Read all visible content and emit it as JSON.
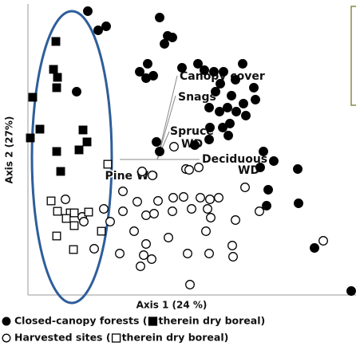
{
  "chart_data": {
    "type": "scatter",
    "x_label": "Axis 1 (24 %)",
    "y_label": "Axis 2 (27%)",
    "xlim": [
      0,
      411
    ],
    "ylim": [
      0,
      365
    ],
    "series": [
      {
        "name": "Closed-canopy forests (",
        "marker": "filled-circle",
        "color": "#000000",
        "x": [
          75,
          88,
          98,
          165,
          175,
          171,
          181,
          150,
          140,
          148,
          157,
          193,
          213,
          221,
          233,
          245,
          269,
          241,
          260,
          235,
          255,
          283,
          285,
          227,
          240,
          250,
          261,
          270,
          273,
          228,
          244,
          253,
          251,
          227,
          209,
          161,
          165,
          295,
          291,
          308,
          338,
          301,
          299,
          339,
          61,
          359,
          405
        ],
        "y": [
          356,
          332,
          337,
          348,
          325,
          315,
          323,
          290,
          280,
          272,
          275,
          285,
          290,
          282,
          280,
          280,
          290,
          265,
          270,
          255,
          250,
          260,
          245,
          235,
          230,
          235,
          230,
          240,
          225,
          210,
          210,
          215,
          200,
          195,
          188,
          192,
          180,
          180,
          160,
          168,
          158,
          132,
          112,
          115,
          255,
          59,
          5
        ]
      },
      {
        "name": "therein dry boreal)",
        "marker": "filled-square",
        "color": "#000000",
        "x": [
          35,
          32,
          37,
          36,
          6,
          15,
          3,
          69,
          74,
          64,
          36,
          41
        ],
        "y": [
          318,
          283,
          273,
          260,
          248,
          208,
          197,
          207,
          192,
          182,
          180,
          155
        ]
      },
      {
        "name": "Harvested sites (",
        "marker": "open-circle",
        "color": "#000000",
        "x": [
          183,
          198,
          202,
          214,
          143,
          156,
          119,
          137,
          148,
          163,
          182,
          195,
          205,
          216,
          228,
          239,
          225,
          229,
          260,
          223,
          181,
          158,
          119,
          103,
          133,
          176,
          148,
          145,
          141,
          155,
          115,
          200,
          227,
          256,
          257,
          272,
          290,
          370,
          203,
          47,
          68,
          70,
          95,
          83
        ],
        "y": [
          186,
          158,
          157,
          160,
          155,
          150,
          130,
          117,
          100,
          118,
          122,
          123,
          108,
          122,
          120,
          122,
          108,
          97,
          94,
          80,
          105,
          102,
          105,
          92,
          80,
          72,
          64,
          50,
          36,
          45,
          52,
          52,
          52,
          62,
          48,
          135,
          105,
          68,
          13,
          120,
          98,
          92,
          108,
          58
        ]
      },
      {
        "name": "therein dry boreal)",
        "marker": "open-square",
        "color": "#000000",
        "x": [
          29,
          37,
          53,
          58,
          76,
          48,
          58,
          92,
          36,
          57,
          100
        ],
        "y": [
          118,
          105,
          103,
          103,
          104,
          96,
          87,
          80,
          74,
          57,
          164
        ]
      }
    ],
    "vectors": {
      "origin": [
        162,
        170
      ],
      "items": [
        {
          "lines": [
            "Canopy cover"
          ],
          "x": 187,
          "y": 275
        },
        {
          "lines": [
            "Snags"
          ],
          "x": 185,
          "y": 250
        },
        {
          "lines": [
            "Spruce",
            "WD"
          ],
          "x": 177,
          "y": 205
        },
        {
          "lines": [
            "Pine WD"
          ],
          "x": 115,
          "y": 170
        },
        {
          "lines": [
            "Deciduous",
            "WD"
          ],
          "x": 215,
          "y": 170
        }
      ]
    }
  }
}
